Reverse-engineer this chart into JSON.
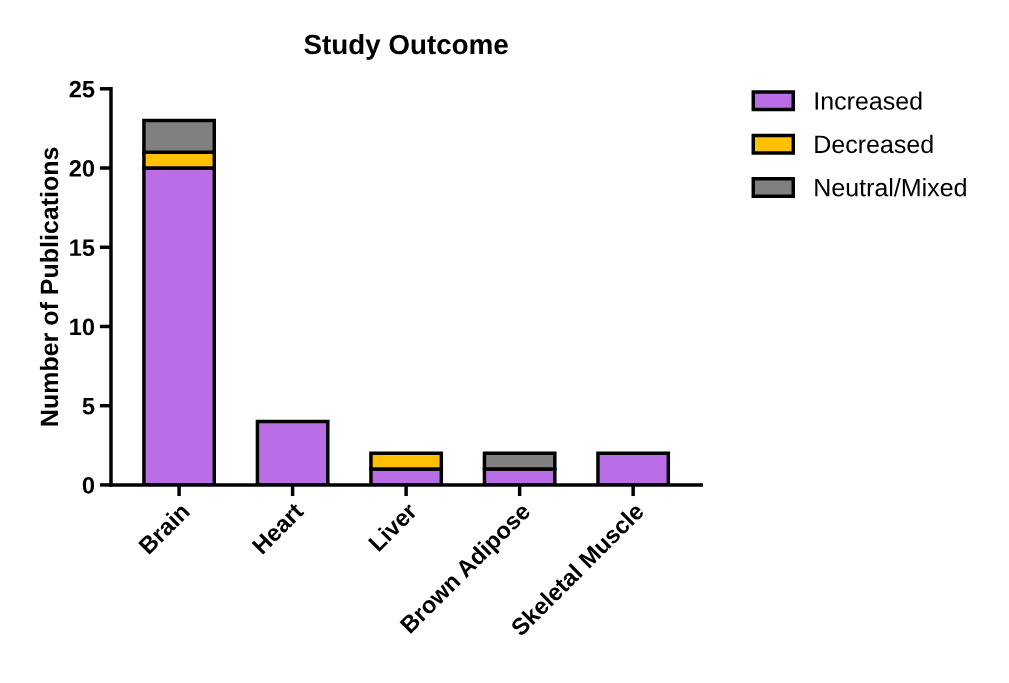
{
  "chart_data": {
    "type": "bar",
    "title": "Study Outcome",
    "ylabel": "Number of Publications",
    "categories": [
      "Brain",
      "Heart",
      "Liver",
      "Brown Adipose",
      "Skeletal Muscle"
    ],
    "stacked": true,
    "series": [
      {
        "name": "Increased",
        "color": "#b96ee6",
        "values": [
          20,
          4,
          1,
          1,
          2
        ]
      },
      {
        "name": "Decreased",
        "color": "#ffc000",
        "values": [
          1,
          null,
          1,
          null,
          null
        ]
      },
      {
        "name": "Neutral/Mixed",
        "color": "#808080",
        "values": [
          2,
          null,
          null,
          1,
          null
        ]
      }
    ],
    "ylim": [
      0,
      25
    ],
    "yticks": [
      0,
      5,
      10,
      15,
      20,
      25
    ],
    "grid": false,
    "legend": "top right"
  }
}
